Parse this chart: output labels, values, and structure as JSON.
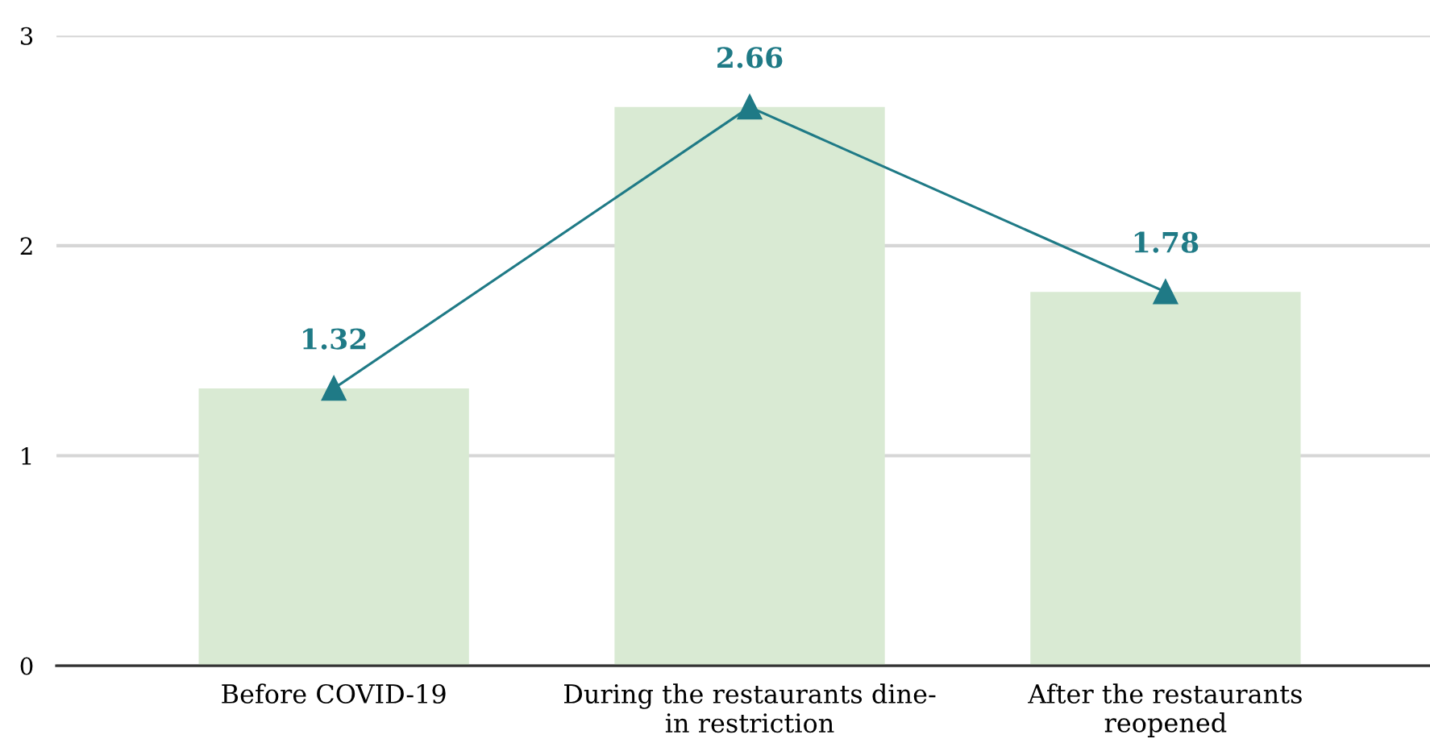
{
  "chart_data": {
    "type": "bar",
    "categories": [
      "Before COVID-19",
      "During the restaurants dine-\nin restriction",
      "After the restaurants\nreopened"
    ],
    "series": [
      {
        "color": "#d9ead3",
        "values": [
          1.32,
          2.66,
          1.78
        ]
      },
      {
        "type": "line",
        "color": "#1f7a86",
        "values": [
          1.32,
          2.66,
          1.78
        ],
        "marker": "triangle",
        "data_labels": true
      }
    ],
    "ylim": [
      0,
      3
    ],
    "yticks": [
      0,
      1,
      2,
      3
    ],
    "grid": "y"
  }
}
